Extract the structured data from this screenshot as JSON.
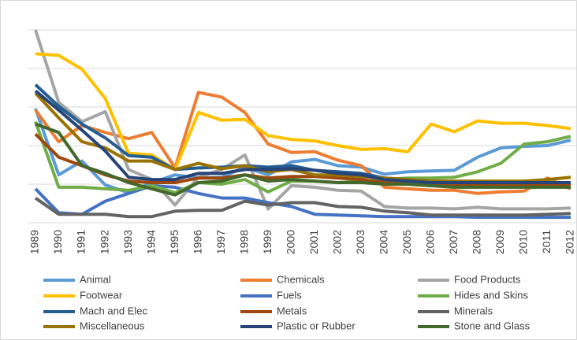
{
  "chart_data": {
    "type": "line",
    "categories": [
      "1989",
      "1990",
      "1991",
      "1992",
      "1993",
      "1994",
      "1995",
      "1996",
      "1997",
      "1998",
      "1999",
      "2000",
      "2001",
      "2002",
      "2003",
      "2004",
      "2005",
      "2006",
      "2007",
      "2008",
      "2009",
      "2010",
      "2011",
      "2012"
    ],
    "ylim": [
      0,
      25
    ],
    "yticks": [
      0,
      5,
      10,
      15,
      20,
      25
    ],
    "grid": true,
    "legend": "bottom",
    "series": [
      {
        "name": "Animal",
        "color": "#5B9BD5",
        "values": [
          14.8,
          6.2,
          8.0,
          4.9,
          3.9,
          5.2,
          6.2,
          5.8,
          5.9,
          7.2,
          6.2,
          7.9,
          8.2,
          7.4,
          7.2,
          6.3,
          6.6,
          6.7,
          6.8,
          8.5,
          9.7,
          9.9,
          10.0,
          10.7
        ]
      },
      {
        "name": "Chemicals",
        "color": "#ED7D31",
        "values": [
          14.6,
          10.5,
          12.6,
          11.7,
          10.9,
          11.7,
          7.1,
          16.9,
          16.3,
          14.3,
          10.2,
          9.1,
          9.2,
          8.1,
          7.4,
          4.6,
          4.4,
          4.2,
          4.2,
          3.8,
          4.0,
          4.1,
          5.8,
          4.4
        ]
      },
      {
        "name": "Food Products",
        "color": "#A5A5A5",
        "values": [
          25,
          15.6,
          13.1,
          14.4,
          6.9,
          5.6,
          2.3,
          5.9,
          6.9,
          8.8,
          1.8,
          4.8,
          4.6,
          4.2,
          4.1,
          2.1,
          1.9,
          1.9,
          1.8,
          2.0,
          1.8,
          1.8,
          1.8,
          1.9
        ]
      },
      {
        "name": "Footwear",
        "color": "#FFC000",
        "values": [
          21.9,
          21.7,
          19.9,
          16.1,
          9.0,
          8.8,
          6.9,
          14.3,
          13.3,
          13.4,
          11.3,
          10.8,
          10.6,
          10.0,
          9.5,
          9.6,
          9.2,
          12.8,
          11.8,
          13.2,
          12.9,
          12.9,
          12.6,
          12.2
        ]
      },
      {
        "name": "Fuels",
        "color": "#4472C4",
        "values": [
          4.4,
          1.3,
          1.1,
          2.8,
          3.8,
          4.8,
          4.6,
          3.8,
          3.2,
          3.2,
          2.6,
          2.1,
          1.1,
          1.0,
          0.9,
          0.8,
          0.8,
          0.8,
          0.8,
          0.7,
          0.7,
          0.7,
          0.7,
          0.7
        ]
      },
      {
        "name": "Hides and Skins",
        "color": "#70AD47",
        "values": [
          13.1,
          4.6,
          4.6,
          4.4,
          4.2,
          4.8,
          3.9,
          5.2,
          5.0,
          5.6,
          4.0,
          5.4,
          5.4,
          5.2,
          5.4,
          5.6,
          5.8,
          5.8,
          5.9,
          6.6,
          7.7,
          10.2,
          10.5,
          11.2
        ]
      },
      {
        "name": "Mach and Elec",
        "color": "#255E91",
        "values": [
          17.9,
          15.1,
          12.8,
          11.0,
          8.7,
          8.5,
          6.9,
          7.1,
          7.2,
          7.4,
          7.2,
          7.4,
          6.8,
          6.6,
          6.4,
          5.8,
          5.6,
          5.4,
          5.2,
          5.1,
          5.0,
          5.0,
          5.0,
          5.0
        ]
      },
      {
        "name": "Metals",
        "color": "#9E480E",
        "values": [
          11.5,
          8.5,
          7.4,
          6.2,
          5.4,
          5.2,
          5.2,
          5.8,
          5.8,
          6.2,
          5.8,
          6.0,
          6.0,
          5.8,
          5.6,
          5.2,
          5.0,
          4.8,
          4.8,
          4.8,
          4.8,
          4.8,
          4.8,
          5.0
        ]
      },
      {
        "name": "Minerals",
        "color": "#636363",
        "values": [
          3.2,
          1.1,
          1.1,
          1.1,
          0.8,
          0.8,
          1.5,
          1.6,
          1.6,
          2.8,
          2.3,
          2.6,
          2.6,
          2.1,
          2.0,
          1.5,
          1.3,
          1.0,
          1.0,
          1.0,
          1.0,
          1.0,
          1.1,
          1.2
        ]
      },
      {
        "name": "Miscellaneous",
        "color": "#997300",
        "values": [
          16.8,
          13.6,
          10.5,
          9.7,
          8.0,
          8.0,
          6.9,
          7.7,
          7.0,
          7.4,
          6.6,
          6.9,
          6.2,
          6.2,
          6.0,
          5.8,
          5.6,
          5.4,
          5.4,
          5.4,
          5.4,
          5.4,
          5.6,
          5.9
        ]
      },
      {
        "name": "Plastic or Rubber",
        "color": "#264478",
        "values": [
          17.1,
          14.6,
          12.0,
          9.3,
          5.9,
          5.6,
          5.6,
          6.4,
          6.4,
          6.9,
          6.9,
          7.0,
          6.8,
          6.4,
          6.2,
          5.6,
          5.4,
          5.2,
          5.2,
          5.2,
          5.2,
          5.2,
          5.2,
          5.2
        ]
      },
      {
        "name": "Stone and Glass",
        "color": "#43682B",
        "values": [
          12.8,
          11.7,
          7.4,
          6.4,
          5.2,
          4.4,
          3.6,
          5.2,
          5.4,
          6.2,
          5.4,
          5.6,
          5.4,
          5.2,
          5.2,
          5.0,
          5.0,
          4.8,
          4.6,
          4.6,
          4.6,
          4.6,
          4.6,
          4.6
        ]
      }
    ]
  }
}
